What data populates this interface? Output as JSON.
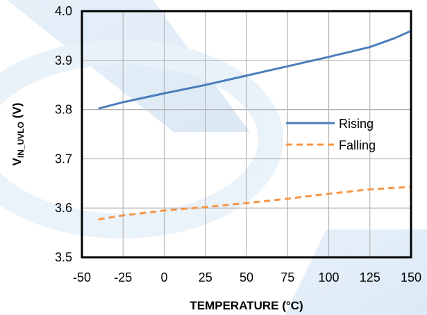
{
  "chart_data": {
    "type": "line",
    "xlabel": "TEMPERATURE  (°C)",
    "ylabel": {
      "main": "V",
      "sub": "IN_UVLO",
      "unit": " (V)"
    },
    "xlim": [
      -50,
      150
    ],
    "ylim": [
      3.5,
      4.0
    ],
    "xticks": [
      -50,
      -25,
      0,
      25,
      50,
      75,
      100,
      125,
      150
    ],
    "yticks": [
      3.5,
      3.6,
      3.7,
      3.8,
      3.9,
      4.0
    ],
    "xtick_labels": [
      "-50",
      "-25",
      "0",
      "25",
      "50",
      "75",
      "100",
      "125",
      "150"
    ],
    "ytick_labels": [
      "3.5",
      "3.6",
      "3.7",
      "3.8",
      "3.9",
      "4.0"
    ],
    "grid": true,
    "legend_position": "center-right",
    "series": [
      {
        "name": "Rising",
        "color": "#4a7ebb",
        "style": "solid",
        "x": [
          -40,
          -25,
          0,
          25,
          50,
          75,
          100,
          125,
          140,
          150
        ],
        "y": [
          3.802,
          3.815,
          3.833,
          3.85,
          3.869,
          3.888,
          3.907,
          3.927,
          3.945,
          3.96
        ]
      },
      {
        "name": "Falling",
        "color": "#f79646",
        "style": "dashed",
        "x": [
          -40,
          -25,
          0,
          25,
          50,
          75,
          100,
          125,
          150
        ],
        "y": [
          3.577,
          3.585,
          3.595,
          3.602,
          3.61,
          3.619,
          3.629,
          3.638,
          3.643
        ]
      }
    ]
  }
}
